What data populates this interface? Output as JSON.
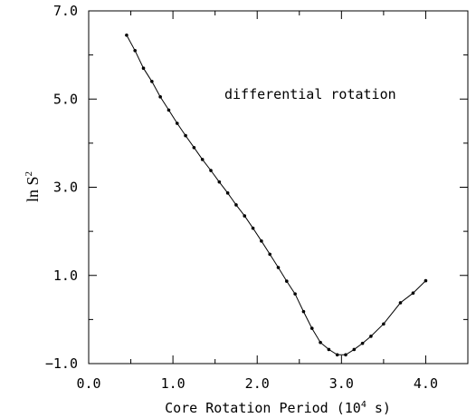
{
  "chart_data": {
    "type": "line",
    "title": "",
    "xlabel_prefix": "Core Rotation Period (10",
    "xlabel_exp": "4",
    "xlabel_suffix": " s)",
    "ylabel_base": "ln S",
    "ylabel_exp": "2",
    "annotation": "differential rotation",
    "xlim": [
      0.0,
      4.5
    ],
    "ylim": [
      -1.0,
      7.0
    ],
    "x_ticks": [
      0.0,
      1.0,
      2.0,
      3.0,
      4.0
    ],
    "x_tick_labels": [
      "0.0",
      "1.0",
      "2.0",
      "3.0",
      "4.0"
    ],
    "y_ticks": [
      -1.0,
      1.0,
      3.0,
      5.0,
      7.0
    ],
    "y_tick_labels": [
      "−1.0",
      "1.0",
      "3.0",
      "5.0",
      "7.0"
    ],
    "grid": false,
    "series": [
      {
        "x": [
          0.45,
          0.55,
          0.65,
          0.75,
          0.85,
          0.95,
          1.05,
          1.15,
          1.25,
          1.35,
          1.45,
          1.55,
          1.65,
          1.75,
          1.85,
          1.95,
          2.05,
          2.15,
          2.25,
          2.35,
          2.45,
          2.55,
          2.65,
          2.75,
          2.85,
          2.95,
          3.05,
          3.15,
          3.25,
          3.35,
          3.5,
          3.7,
          3.85,
          4.0
        ],
        "y": [
          6.45,
          6.1,
          5.7,
          5.4,
          5.05,
          4.75,
          4.45,
          4.17,
          3.9,
          3.63,
          3.38,
          3.12,
          2.87,
          2.6,
          2.35,
          2.07,
          1.78,
          1.48,
          1.18,
          0.87,
          0.58,
          0.18,
          -0.2,
          -0.52,
          -0.68,
          -0.8,
          -0.8,
          -0.68,
          -0.54,
          -0.38,
          -0.1,
          0.38,
          0.6,
          0.88
        ]
      }
    ]
  }
}
